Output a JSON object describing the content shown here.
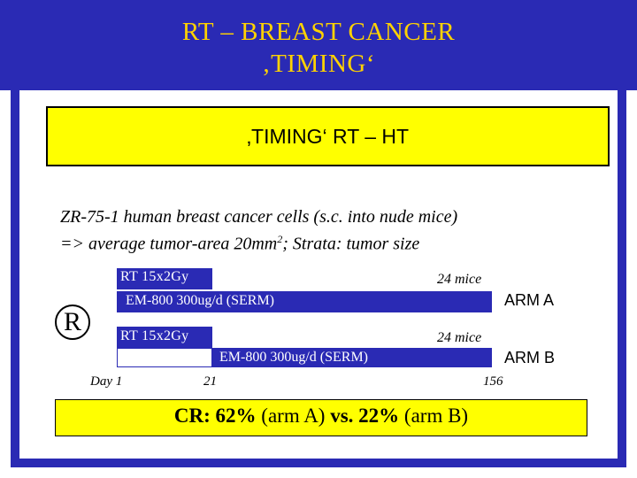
{
  "slide": {
    "title_line1": "RT – BREAST CANCER",
    "title_line2": "‚TIMING‘",
    "box_label": "‚TIMING‘  RT – HT",
    "description_line1": "ZR-75-1 human breast cancer cells (s.c. into nude mice)",
    "description_line2_a": "=> average tumor-area 20mm",
    "description_line2_sup": "2",
    "description_line2_b": ";  Strata: tumor size",
    "randomization_label": "R",
    "colors": {
      "title_band": "#2a2ab4",
      "title_text": "#ffd200",
      "highlight": "#ffff00",
      "bar": "#2a2ab4"
    }
  },
  "arm_a": {
    "rt_label": "RT  15x2Gy",
    "em_label": "EM-800 300ug/d (SERM)",
    "mice": "24 mice",
    "arm_label": "ARM A"
  },
  "arm_b": {
    "rt_label": "RT  15x2Gy",
    "em_label": "EM-800 300ug/d (SERM)",
    "mice": "24 mice",
    "arm_label": "ARM B"
  },
  "timeline": {
    "day1": "Day 1",
    "day21": "21",
    "day156": "156"
  },
  "result": {
    "cr_label": "CR:",
    "arm_a_value": "62%",
    "arm_a_label": "(arm A)",
    "vs": "vs.",
    "arm_b_value": "22%",
    "arm_b_label": "(arm B)"
  }
}
